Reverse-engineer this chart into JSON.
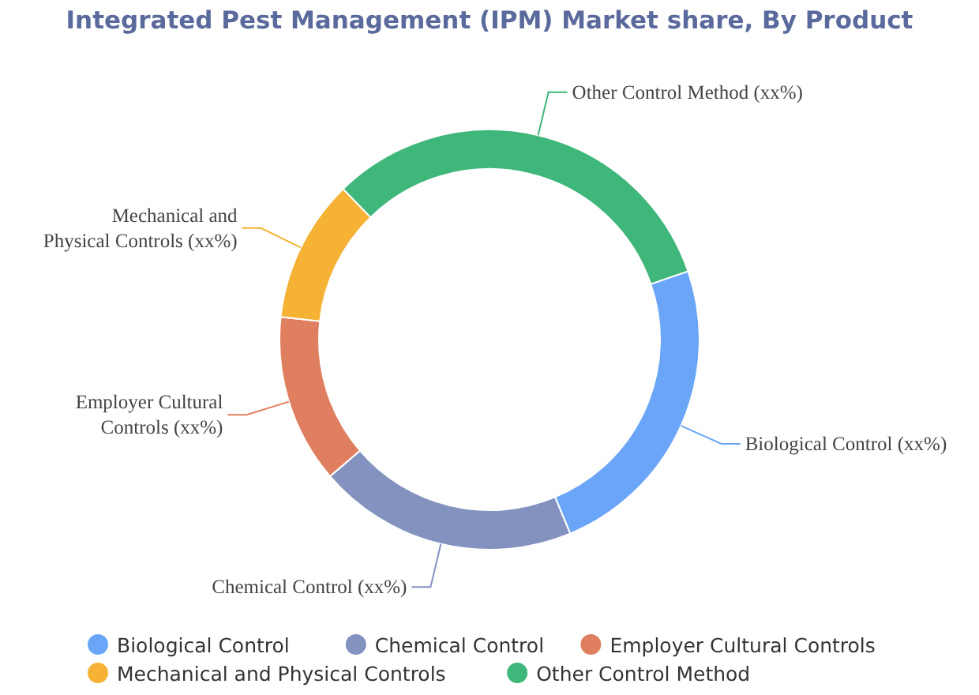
{
  "chart_data": {
    "type": "donut",
    "title": "Integrated Pest Management (IPM) Market share, By Product",
    "categories": [
      "Biological Control",
      "Chemical Control",
      "Employer Cultural Controls",
      "Mechanical and Physical Controls",
      "Other Control Method"
    ],
    "values": [
      24,
      20,
      13,
      11,
      32
    ],
    "colors": [
      "#6aa5f7",
      "#8492c0",
      "#e07f5f",
      "#f5b234",
      "#3fb67a"
    ],
    "value_labels": [
      "Biological Control (xx%)",
      "Chemical Control (xx%)",
      "Employer Cultural\nControls (xx%)",
      "Mechanical and\nPhysical Controls (xx%)",
      "Other Control Method (xx%)"
    ],
    "legend": "bottom"
  }
}
